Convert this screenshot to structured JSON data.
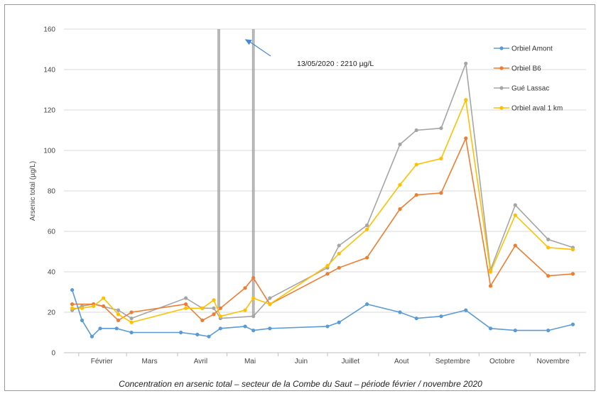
{
  "chart_data": {
    "type": "line",
    "ylabel": "Arsenic total (µg/L)",
    "ylim": [
      0,
      160
    ],
    "yticks": [
      0,
      20,
      40,
      60,
      80,
      100,
      120,
      140,
      160
    ],
    "grid": true,
    "legend_position": "top-right",
    "x_axis": "date (2020)",
    "x_tick_labels": [
      {
        "label": "Février",
        "date": "2020-02-15"
      },
      {
        "label": "Mars",
        "date": "2020-03-15"
      },
      {
        "label": "Avril",
        "date": "2020-04-15"
      },
      {
        "label": "Mai",
        "date": "2020-05-15"
      },
      {
        "label": "Juin",
        "date": "2020-06-15"
      },
      {
        "label": "Juillet",
        "date": "2020-07-15"
      },
      {
        "label": "Aout",
        "date": "2020-08-15"
      },
      {
        "label": "Septembre",
        "date": "2020-09-15"
      },
      {
        "label": "Octobre",
        "date": "2020-10-15"
      },
      {
        "label": "Novembre",
        "date": "2020-11-15"
      }
    ],
    "series": [
      {
        "name": "Orbiel Amont",
        "color": "#5b9bd5",
        "points": [
          {
            "x": "2020-01-28",
            "y": 31
          },
          {
            "x": "2020-02-03",
            "y": 16
          },
          {
            "x": "2020-02-09",
            "y": 8
          },
          {
            "x": "2020-02-14",
            "y": 12
          },
          {
            "x": "2020-02-24",
            "y": 12
          },
          {
            "x": "2020-03-04",
            "y": 10
          },
          {
            "x": "2020-04-03",
            "y": 10
          },
          {
            "x": "2020-04-13",
            "y": 9
          },
          {
            "x": "2020-04-20",
            "y": 8
          },
          {
            "x": "2020-04-27",
            "y": 12
          },
          {
            "x": "2020-05-12",
            "y": 13
          },
          {
            "x": "2020-05-17",
            "y": 11
          },
          {
            "x": "2020-05-27",
            "y": 12
          },
          {
            "x": "2020-07-01",
            "y": 13
          },
          {
            "x": "2020-07-08",
            "y": 15
          },
          {
            "x": "2020-07-25",
            "y": 24
          },
          {
            "x": "2020-08-14",
            "y": 20
          },
          {
            "x": "2020-08-24",
            "y": 17
          },
          {
            "x": "2020-09-08",
            "y": 18
          },
          {
            "x": "2020-09-23",
            "y": 21
          },
          {
            "x": "2020-10-08",
            "y": 12
          },
          {
            "x": "2020-10-23",
            "y": 11
          },
          {
            "x": "2020-11-12",
            "y": 11
          },
          {
            "x": "2020-11-27",
            "y": 14
          }
        ]
      },
      {
        "name": "Orbiel B6",
        "color": "#ed7d31",
        "points": [
          {
            "x": "2020-01-28",
            "y": 24
          },
          {
            "x": "2020-02-10",
            "y": 24
          },
          {
            "x": "2020-02-16",
            "y": 23
          },
          {
            "x": "2020-02-25",
            "y": 16
          },
          {
            "x": "2020-03-04",
            "y": 20
          },
          {
            "x": "2020-04-06",
            "y": 24
          },
          {
            "x": "2020-04-16",
            "y": 16
          },
          {
            "x": "2020-04-23",
            "y": 19
          },
          {
            "x": "2020-04-27",
            "y": 22
          },
          {
            "x": "2020-05-12",
            "y": 32
          },
          {
            "x": "2020-05-17",
            "y": 37
          },
          {
            "x": "2020-05-27",
            "y": 24
          },
          {
            "x": "2020-07-01",
            "y": 39
          },
          {
            "x": "2020-07-08",
            "y": 42
          },
          {
            "x": "2020-07-25",
            "y": 47
          },
          {
            "x": "2020-08-14",
            "y": 71
          },
          {
            "x": "2020-08-24",
            "y": 78
          },
          {
            "x": "2020-09-08",
            "y": 79
          },
          {
            "x": "2020-09-23",
            "y": 106
          },
          {
            "x": "2020-10-08",
            "y": 33
          },
          {
            "x": "2020-10-23",
            "y": 53
          },
          {
            "x": "2020-11-12",
            "y": 38
          },
          {
            "x": "2020-11-27",
            "y": 39
          }
        ]
      },
      {
        "name": "Gué Lassac",
        "color": "#a5a5a5",
        "points": [
          {
            "x": "2020-01-28",
            "y": 21
          },
          {
            "x": "2020-02-03",
            "y": 23
          },
          {
            "x": "2020-02-10",
            "y": 24
          },
          {
            "x": "2020-02-25",
            "y": 21
          },
          {
            "x": "2020-03-04",
            "y": 17
          },
          {
            "x": "2020-04-06",
            "y": 27
          },
          {
            "x": "2020-04-16",
            "y": 22
          },
          {
            "x": "2020-04-23",
            "y": 22
          },
          {
            "x": "2020-04-27",
            "y": 17
          },
          {
            "x": "2020-05-17",
            "y": 18
          },
          {
            "x": "2020-05-27",
            "y": 27
          },
          {
            "x": "2020-07-01",
            "y": 42
          },
          {
            "x": "2020-07-08",
            "y": 53
          },
          {
            "x": "2020-07-25",
            "y": 63
          },
          {
            "x": "2020-08-14",
            "y": 103
          },
          {
            "x": "2020-08-24",
            "y": 110
          },
          {
            "x": "2020-09-08",
            "y": 111
          },
          {
            "x": "2020-09-23",
            "y": 143
          },
          {
            "x": "2020-10-08",
            "y": 41
          },
          {
            "x": "2020-10-23",
            "y": 73
          },
          {
            "x": "2020-11-12",
            "y": 56
          },
          {
            "x": "2020-11-27",
            "y": 52
          }
        ],
        "spikes": [
          {
            "x": "2020-04-26",
            "from": 22,
            "to": 160
          },
          {
            "x": "2020-05-17",
            "from": 18,
            "to": 160
          }
        ]
      },
      {
        "name": "Orbiel aval 1 km",
        "color": "#ffc000",
        "points": [
          {
            "x": "2020-01-28",
            "y": 22
          },
          {
            "x": "2020-02-03",
            "y": 22
          },
          {
            "x": "2020-02-10",
            "y": 23
          },
          {
            "x": "2020-02-16",
            "y": 27
          },
          {
            "x": "2020-02-25",
            "y": 19
          },
          {
            "x": "2020-03-04",
            "y": 15
          },
          {
            "x": "2020-04-06",
            "y": 22
          },
          {
            "x": "2020-04-16",
            "y": 22
          },
          {
            "x": "2020-04-23",
            "y": 26
          },
          {
            "x": "2020-04-27",
            "y": 18
          },
          {
            "x": "2020-05-12",
            "y": 21
          },
          {
            "x": "2020-05-17",
            "y": 27
          },
          {
            "x": "2020-05-27",
            "y": 24
          },
          {
            "x": "2020-07-01",
            "y": 43
          },
          {
            "x": "2020-07-08",
            "y": 49
          },
          {
            "x": "2020-07-25",
            "y": 61
          },
          {
            "x": "2020-08-14",
            "y": 83
          },
          {
            "x": "2020-08-24",
            "y": 93
          },
          {
            "x": "2020-09-08",
            "y": 96
          },
          {
            "x": "2020-09-23",
            "y": 125
          },
          {
            "x": "2020-10-08",
            "y": 40
          },
          {
            "x": "2020-10-23",
            "y": 68
          },
          {
            "x": "2020-11-12",
            "y": 52
          },
          {
            "x": "2020-11-27",
            "y": 51
          }
        ]
      }
    ],
    "annotations": [
      {
        "text": "13/05/2020 : 2210 µg/L",
        "points_to": {
          "x": "2020-05-17",
          "y": 155
        }
      }
    ]
  },
  "caption": "Concentration en arsenic total – secteur de la Combe du Saut – période février / novembre 2020"
}
